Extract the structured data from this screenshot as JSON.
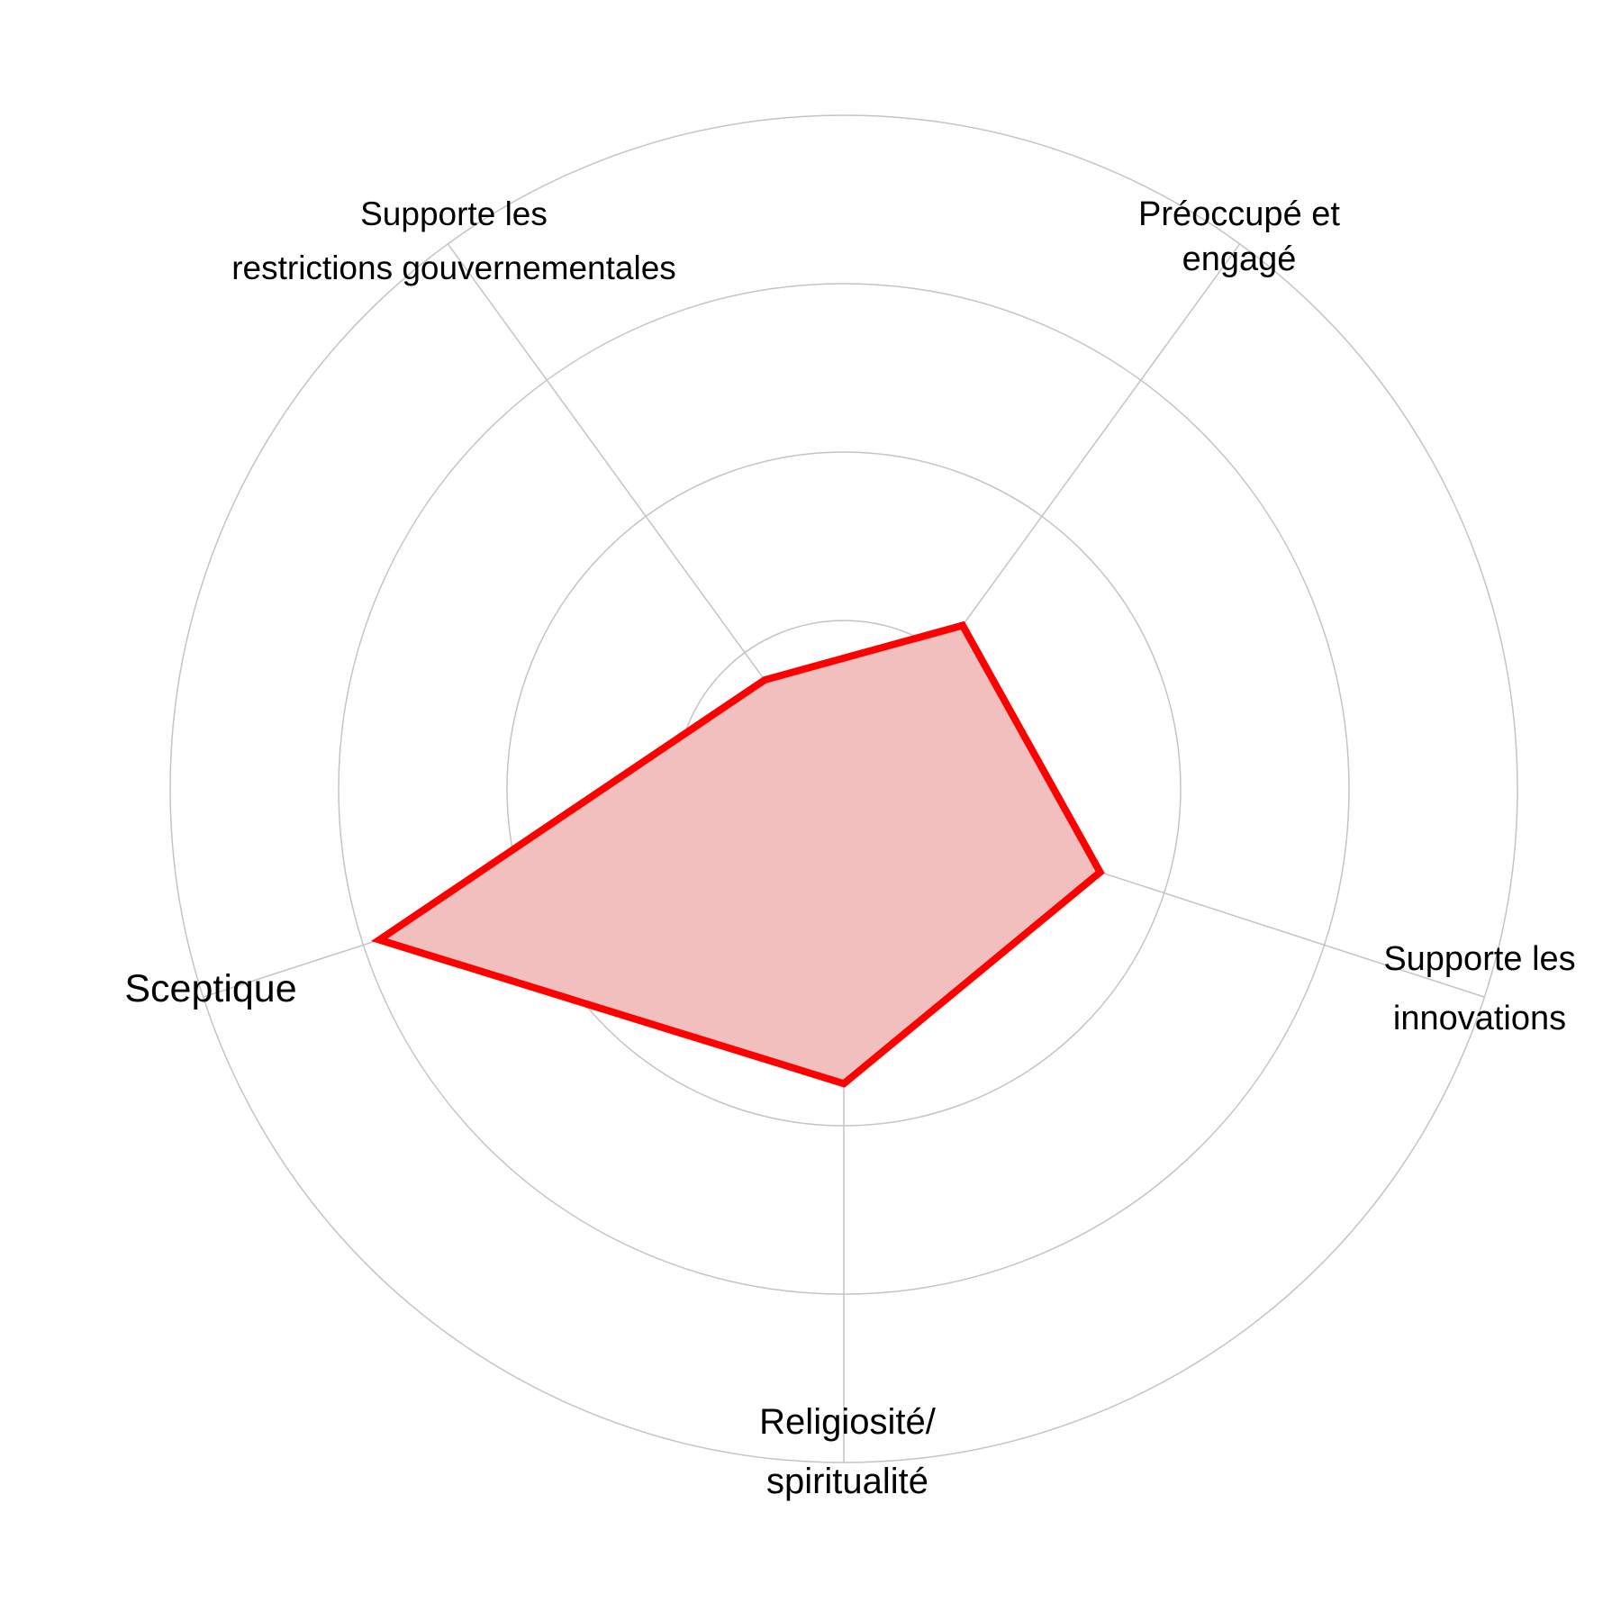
{
  "chart_data": {
    "type": "radar",
    "title": "",
    "categories": [
      [
        "Préoccupé et",
        "engagé"
      ],
      [
        "Supporte les",
        "innovations"
      ],
      [
        "Religiosité/",
        "spiritualité"
      ],
      [
        "Sceptique"
      ],
      [
        "Supporte les",
        "restrictions gouvernementales"
      ]
    ],
    "series": [
      {
        "values": [
          1.2,
          1.6,
          1.75,
          2.9,
          0.8
        ]
      }
    ],
    "rlim": [
      0,
      4
    ],
    "grid_rings": [
      1,
      2,
      3,
      4
    ],
    "grid": true,
    "legend": "none",
    "colors": {
      "line": "#ff0000",
      "fill": "#f2bfbf",
      "grid": "#c4c4c4"
    }
  }
}
